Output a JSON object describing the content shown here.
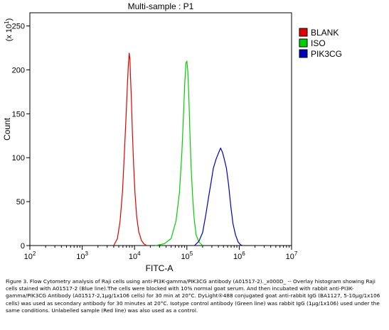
{
  "chart_data": {
    "type": "line",
    "title": "Multi-sample : P1",
    "xlabel": "FITC-A",
    "ylabel": "Count",
    "y_multiplier": "(x 10",
    "y_multiplier_exp": "1",
    "x_scale": "log",
    "xlim": [
      100,
      10000000
    ],
    "ylim": [
      0,
      265
    ],
    "x_ticks": [
      {
        "value": 100,
        "base": "10",
        "exp": "2"
      },
      {
        "value": 1000,
        "base": "10",
        "exp": "3"
      },
      {
        "value": 10000,
        "base": "10",
        "exp": "4"
      },
      {
        "value": 100000,
        "base": "10",
        "exp": "5"
      },
      {
        "value": 1000000,
        "base": "10",
        "exp": "6"
      },
      {
        "value": 10000000,
        "base": "10",
        "exp": "7"
      }
    ],
    "y_ticks": [
      {
        "value": 0,
        "label": "0"
      },
      {
        "value": 50,
        "label": "50"
      },
      {
        "value": 100,
        "label": "100"
      },
      {
        "value": 150,
        "label": "150"
      },
      {
        "value": 200,
        "label": "200"
      },
      {
        "value": 250,
        "label": "250"
      }
    ],
    "legend_position": "top-right",
    "grid": false,
    "series": [
      {
        "name": "BLANK",
        "color": "#e00000",
        "points": [
          [
            4000,
            0
          ],
          [
            4700,
            8
          ],
          [
            5300,
            28
          ],
          [
            5900,
            62
          ],
          [
            6400,
            105
          ],
          [
            6900,
            148
          ],
          [
            7300,
            182
          ],
          [
            7600,
            205
          ],
          [
            7900,
            219
          ],
          [
            8150,
            212
          ],
          [
            8400,
            190
          ],
          [
            8700,
            168
          ],
          [
            9100,
            128
          ],
          [
            9600,
            92
          ],
          [
            10200,
            60
          ],
          [
            11000,
            33
          ],
          [
            12000,
            16
          ],
          [
            13500,
            6
          ],
          [
            15000,
            2
          ],
          [
            17000,
            0
          ]
        ]
      },
      {
        "name": "ISO",
        "color": "#00d000",
        "points": [
          [
            25000,
            0
          ],
          [
            37000,
            2
          ],
          [
            50000,
            8
          ],
          [
            62000,
            28
          ],
          [
            72000,
            60
          ],
          [
            80000,
            105
          ],
          [
            86000,
            148
          ],
          [
            91000,
            185
          ],
          [
            96000,
            208
          ],
          [
            100000,
            210
          ],
          [
            104000,
            198
          ],
          [
            109000,
            168
          ],
          [
            114000,
            130
          ],
          [
            120000,
            92
          ],
          [
            128000,
            58
          ],
          [
            138000,
            30
          ],
          [
            150000,
            12
          ],
          [
            170000,
            4
          ],
          [
            200000,
            0
          ]
        ]
      },
      {
        "name": "PIK3CG",
        "color": "#0000c0",
        "points": [
          [
            140000,
            0
          ],
          [
            170000,
            5
          ],
          [
            200000,
            15
          ],
          [
            230000,
            35
          ],
          [
            260000,
            55
          ],
          [
            290000,
            72
          ],
          [
            320000,
            88
          ],
          [
            360000,
            98
          ],
          [
            400000,
            105
          ],
          [
            440000,
            111
          ],
          [
            480000,
            106
          ],
          [
            520000,
            98
          ],
          [
            570000,
            88
          ],
          [
            630000,
            68
          ],
          [
            690000,
            45
          ],
          [
            760000,
            25
          ],
          [
            850000,
            12
          ],
          [
            950000,
            4
          ],
          [
            1050000,
            1
          ],
          [
            1150000,
            0
          ]
        ]
      }
    ]
  },
  "caption": "Figure 3. Flow Cytometry analysis of Raji cells using anti-PI3K-gamma/PIK3CG antibody (A01517-2)._x000D_ -- Overlay histogram showing Raji cells stained with A01517-2 (Blue line).The cells were blocked with 10% normal goat serum. And then incubated with rabbit anti-PI3K-gamma/PIK3CG Antibody (A01517-2,1μg/1x106 cells) for 30 min at 20°C. DyLight®488 conjugated goat anti-rabbit IgG (BA1127, 5-10μg/1x106 cells) was used as secondary antibody for 30 minutes at 20°C. Isotype control antibody (Green line) was rabbit IgG (1μg/1x106) used under the same conditions. Unlabelled sample (Red line) was also used as a control."
}
